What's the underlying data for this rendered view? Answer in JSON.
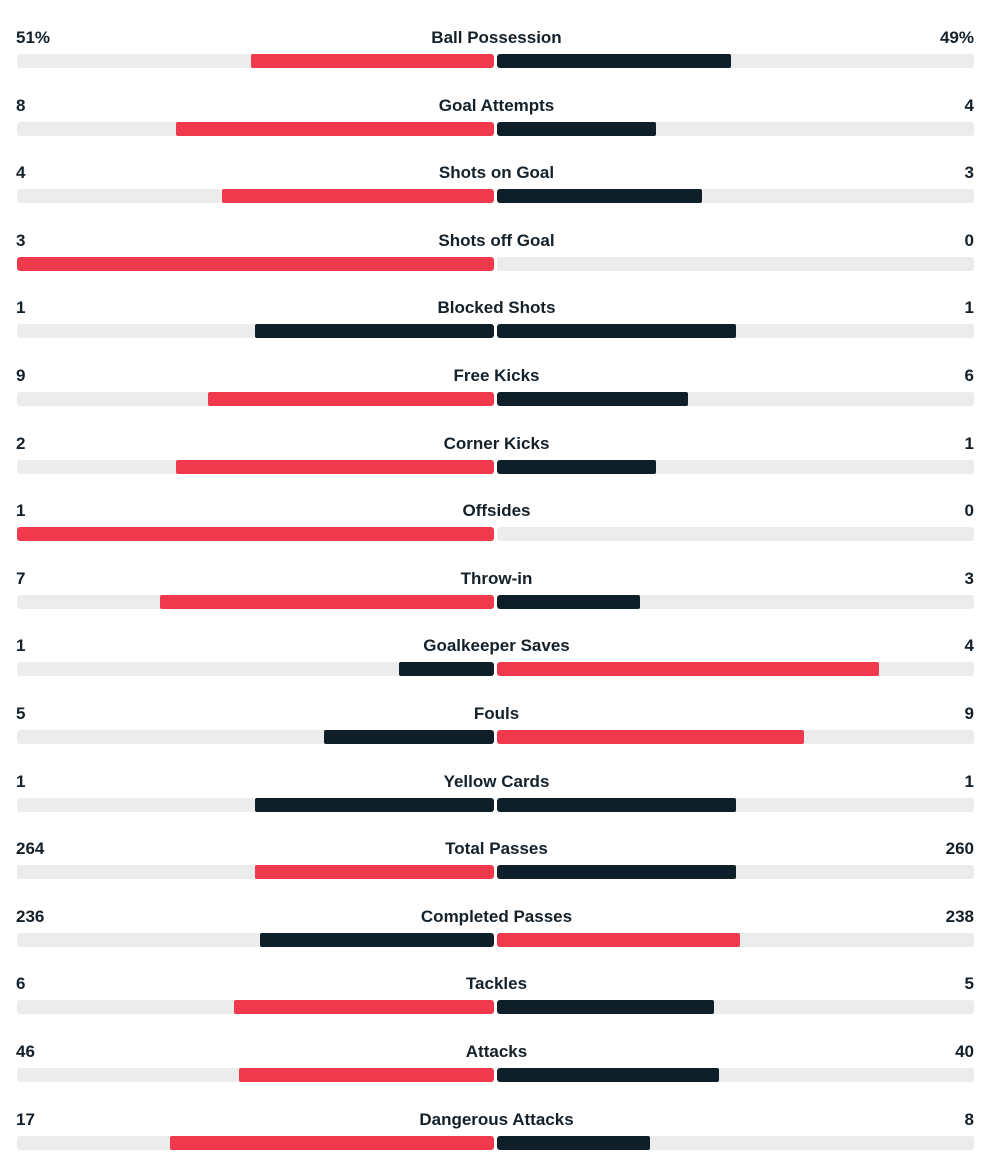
{
  "colors": {
    "leader": "#f0394d",
    "other": "#0e1f2a",
    "track": "#ececec"
  },
  "chart_data": {
    "type": "bar",
    "orientation": "mirrored-horizontal",
    "title": "",
    "categories": [
      "Ball Possession",
      "Goal Attempts",
      "Shots on Goal",
      "Shots off Goal",
      "Blocked Shots",
      "Free Kicks",
      "Corner Kicks",
      "Offsides",
      "Throw-in",
      "Goalkeeper Saves",
      "Fouls",
      "Yellow Cards",
      "Total Passes",
      "Completed Passes",
      "Tackles",
      "Attacks",
      "Dangerous Attacks"
    ],
    "series": [
      {
        "values": [
          51,
          8,
          4,
          3,
          1,
          9,
          2,
          1,
          7,
          1,
          5,
          1,
          264,
          236,
          6,
          46,
          17
        ]
      },
      {
        "values": [
          49,
          4,
          3,
          0,
          1,
          6,
          1,
          0,
          3,
          4,
          9,
          1,
          260,
          238,
          5,
          40,
          8
        ]
      }
    ],
    "rows": [
      {
        "label": "Ball Possession",
        "home_text": "51%",
        "away_text": "49%",
        "home": 51,
        "away": 49,
        "home_fill": 0.51,
        "away_fill": 0.49,
        "leader": "home"
      },
      {
        "label": "Goal Attempts",
        "home_text": "8",
        "away_text": "4",
        "home": 8,
        "away": 4,
        "home_fill": 0.667,
        "away_fill": 0.333,
        "leader": "home"
      },
      {
        "label": "Shots on Goal",
        "home_text": "4",
        "away_text": "3",
        "home": 4,
        "away": 3,
        "home_fill": 0.571,
        "away_fill": 0.429,
        "leader": "home"
      },
      {
        "label": "Shots off Goal",
        "home_text": "3",
        "away_text": "0",
        "home": 3,
        "away": 0,
        "home_fill": 1.0,
        "away_fill": 0.0,
        "leader": "home"
      },
      {
        "label": "Blocked Shots",
        "home_text": "1",
        "away_text": "1",
        "home": 1,
        "away": 1,
        "home_fill": 0.5,
        "away_fill": 0.5,
        "leader": "none"
      },
      {
        "label": "Free Kicks",
        "home_text": "9",
        "away_text": "6",
        "home": 9,
        "away": 6,
        "home_fill": 0.6,
        "away_fill": 0.4,
        "leader": "home"
      },
      {
        "label": "Corner Kicks",
        "home_text": "2",
        "away_text": "1",
        "home": 2,
        "away": 1,
        "home_fill": 0.667,
        "away_fill": 0.333,
        "leader": "home"
      },
      {
        "label": "Offsides",
        "home_text": "1",
        "away_text": "0",
        "home": 1,
        "away": 0,
        "home_fill": 1.0,
        "away_fill": 0.0,
        "leader": "home"
      },
      {
        "label": "Throw-in",
        "home_text": "7",
        "away_text": "3",
        "home": 7,
        "away": 3,
        "home_fill": 0.7,
        "away_fill": 0.3,
        "leader": "home"
      },
      {
        "label": "Goalkeeper Saves",
        "home_text": "1",
        "away_text": "4",
        "home": 1,
        "away": 4,
        "home_fill": 0.2,
        "away_fill": 0.8,
        "leader": "away"
      },
      {
        "label": "Fouls",
        "home_text": "5",
        "away_text": "9",
        "home": 5,
        "away": 9,
        "home_fill": 0.357,
        "away_fill": 0.643,
        "leader": "away"
      },
      {
        "label": "Yellow Cards",
        "home_text": "1",
        "away_text": "1",
        "home": 1,
        "away": 1,
        "home_fill": 0.5,
        "away_fill": 0.5,
        "leader": "none"
      },
      {
        "label": "Total Passes",
        "home_text": "264",
        "away_text": "260",
        "home": 264,
        "away": 260,
        "home_fill": 0.5,
        "away_fill": 0.5,
        "leader": "home"
      },
      {
        "label": "Completed Passes",
        "home_text": "236",
        "away_text": "238",
        "home": 236,
        "away": 238,
        "home_fill": 0.49,
        "away_fill": 0.51,
        "leader": "away"
      },
      {
        "label": "Tackles",
        "home_text": "6",
        "away_text": "5",
        "home": 6,
        "away": 5,
        "home_fill": 0.545,
        "away_fill": 0.455,
        "leader": "home"
      },
      {
        "label": "Attacks",
        "home_text": "46",
        "away_text": "40",
        "home": 46,
        "away": 40,
        "home_fill": 0.535,
        "away_fill": 0.465,
        "leader": "home"
      },
      {
        "label": "Dangerous Attacks",
        "home_text": "17",
        "away_text": "8",
        "home": 17,
        "away": 8,
        "home_fill": 0.68,
        "away_fill": 0.32,
        "leader": "home"
      }
    ]
  }
}
